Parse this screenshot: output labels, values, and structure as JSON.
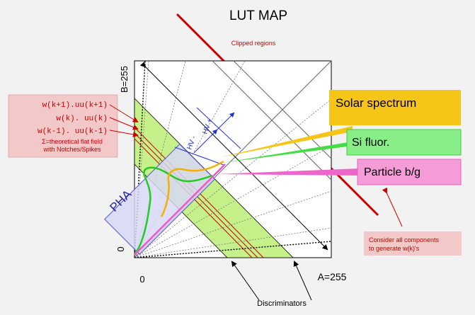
{
  "title": "LUT MAP",
  "clipped_label": "Clipped regions",
  "axes": {
    "b_max": "B=255",
    "b_zero": "0",
    "a_zero": "0",
    "a_max": "A=255"
  },
  "pha_label": "PHA",
  "hv_plus": "HV +",
  "hv_minus": "HV -",
  "weights": {
    "line1": "w(k+1).uu(k+1)",
    "line2": "w(k). uu(k)",
    "line3": "w(k-1). uu(k-1)",
    "sum1": "Σ=theoretical flat field",
    "sum2": "with Notches/Spikes"
  },
  "callouts": {
    "solar": "Solar spectrum",
    "si": "Si fluor.",
    "particle": "Particle b/g"
  },
  "consider": {
    "line1": "Consider all components",
    "line2": "to generate w(k)'s"
  },
  "discriminators": "Discriminators",
  "colors": {
    "background": "#f2f2f2",
    "band_green": "#c6f08a",
    "clip_red": "#cc0000",
    "solar_yellow": "#f5c518",
    "si_green": "#7ee87e",
    "particle_pink": "#f08cd8",
    "weights_box": "#f2c8c8",
    "pha_box": "#d8d8f4"
  }
}
